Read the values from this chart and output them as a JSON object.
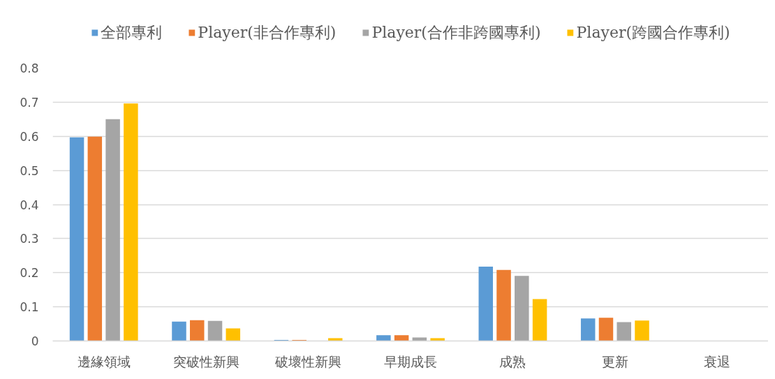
{
  "chart_data": {
    "type": "bar",
    "categories": [
      "邊緣領域",
      "突破性新興",
      "破壞性新興",
      "早期成長",
      "成熟",
      "更新",
      "衰退"
    ],
    "series": [
      {
        "name": "全部專利",
        "color": "#5b9bd5",
        "values": [
          0.597,
          0.057,
          0.003,
          0.017,
          0.218,
          0.066,
          0
        ]
      },
      {
        "name": "Player(非合作專利)",
        "color": "#ed7d31",
        "values": [
          0.599,
          0.061,
          0.003,
          0.017,
          0.208,
          0.068,
          0
        ]
      },
      {
        "name": "Player(合作非跨國專利)",
        "color": "#a5a5a5",
        "values": [
          0.65,
          0.059,
          0,
          0.01,
          0.191,
          0.055,
          0
        ]
      },
      {
        "name": "Player(跨國合作專利)",
        "color": "#ffc000",
        "values": [
          0.696,
          0.037,
          0.008,
          0.008,
          0.123,
          0.06,
          0
        ]
      }
    ],
    "ylim": [
      0,
      0.8
    ],
    "yticks": [
      0,
      0.1,
      0.2,
      0.3,
      0.4,
      0.5,
      0.6,
      0.7,
      0.8
    ],
    "grid": "y",
    "legend": "top"
  }
}
